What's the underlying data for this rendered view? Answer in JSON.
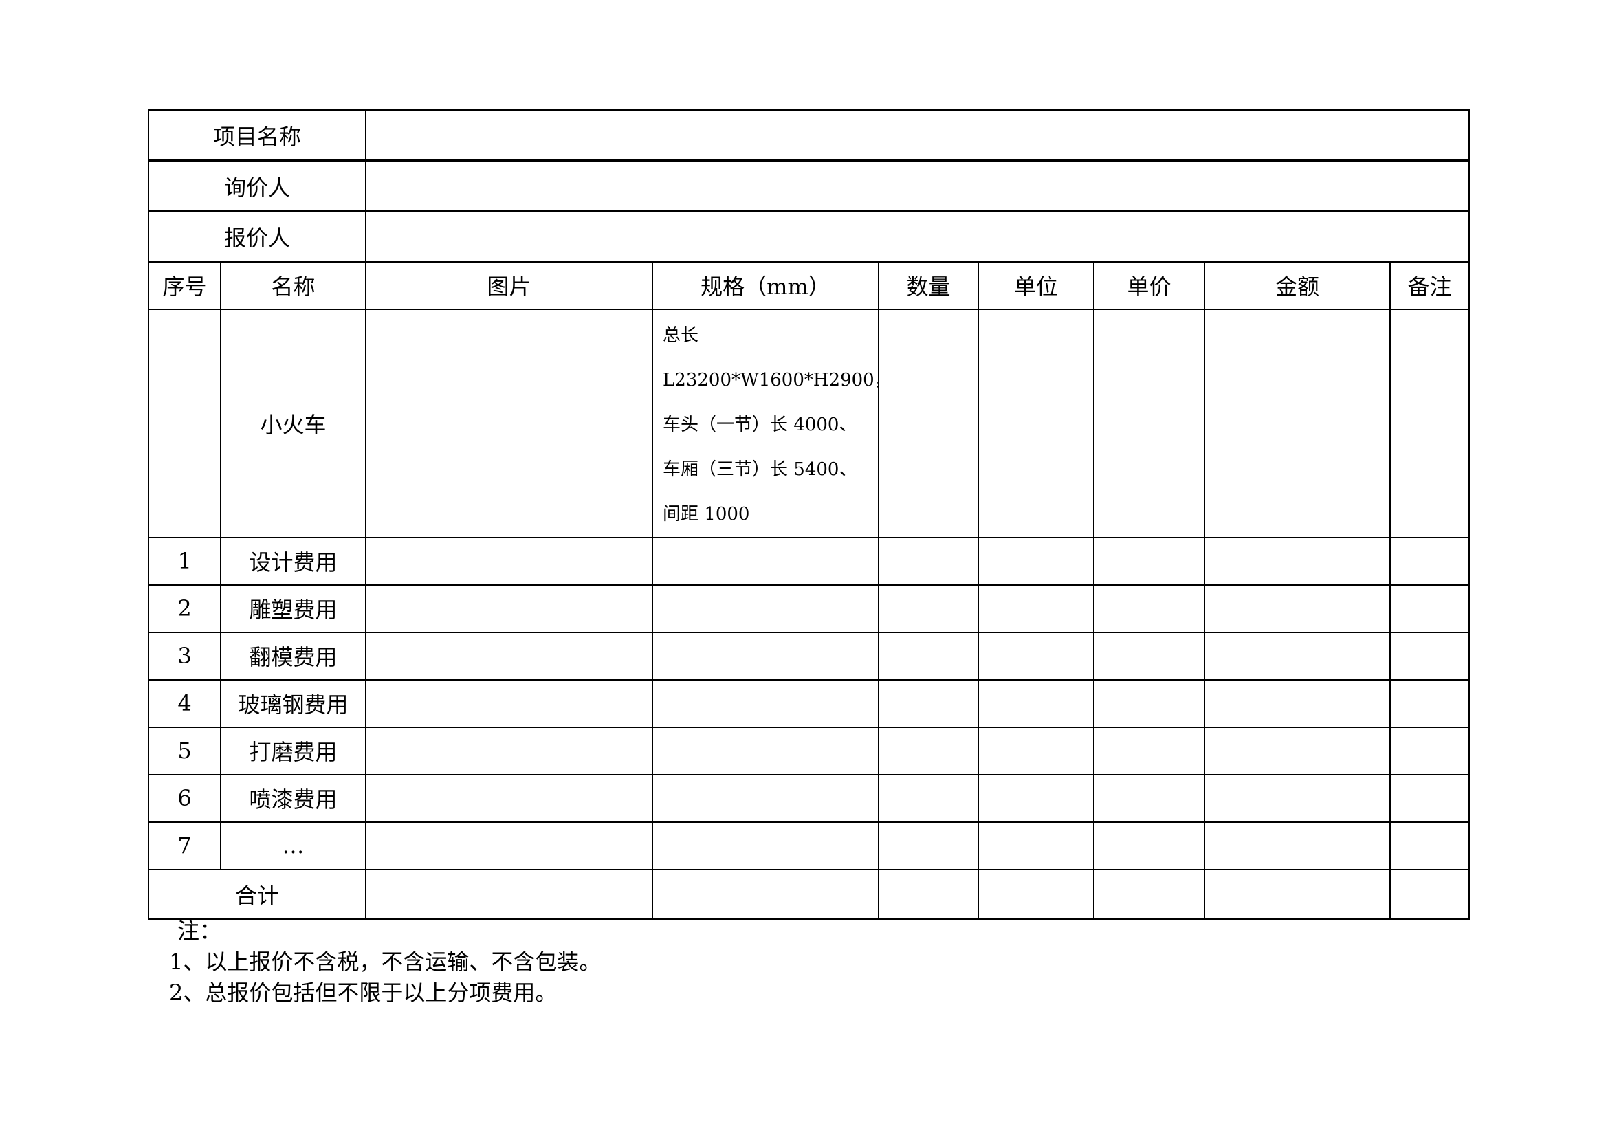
{
  "header_rows": [
    {
      "label": "项目名称",
      "value": ""
    },
    {
      "label": "询价人",
      "value": ""
    },
    {
      "label": "报价人",
      "value": ""
    }
  ],
  "columns": [
    "序号",
    "名称",
    "图片",
    "规格（mm）",
    "数量",
    "单位",
    "单价",
    "金额",
    "备注"
  ],
  "main_item": {
    "name": "小火车",
    "spec": [
      "总长",
      "L23200*W1600*H2900，",
      "车头（一节）长 4000、",
      "车厢（三节）长 5400、",
      "间距 1000"
    ]
  },
  "items": [
    {
      "no": "1",
      "name": "设计费用"
    },
    {
      "no": "2",
      "name": "雕塑费用"
    },
    {
      "no": "3",
      "name": "翻模费用"
    },
    {
      "no": "4",
      "name": "玻璃钢费用"
    },
    {
      "no": "5",
      "name": "打磨费用"
    },
    {
      "no": "6",
      "name": "喷漆费用"
    },
    {
      "no": "7",
      "name": "…"
    }
  ],
  "total_label": "合计",
  "notes": [
    "注：",
    "1、以上报价不含税，不含运输、不含包装。",
    "2、总报价包括但不限于以上分项费用。"
  ]
}
